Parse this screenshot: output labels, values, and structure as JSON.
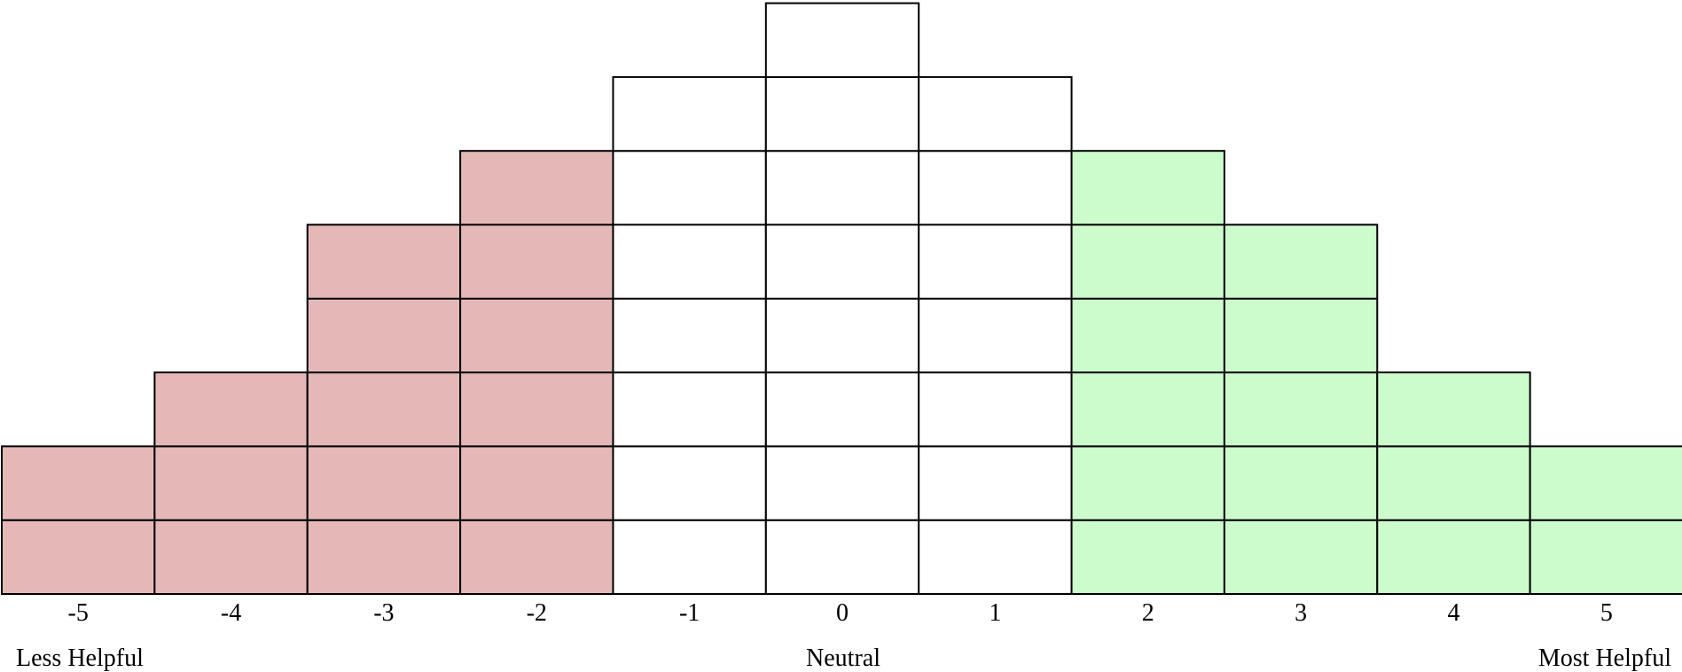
{
  "grid": {
    "columns": [
      {
        "label": "-5",
        "cells": 2,
        "group": "negative"
      },
      {
        "label": "-4",
        "cells": 3,
        "group": "negative"
      },
      {
        "label": "-3",
        "cells": 5,
        "group": "negative"
      },
      {
        "label": "-2",
        "cells": 6,
        "group": "negative"
      },
      {
        "label": "-1",
        "cells": 7,
        "group": "neutral"
      },
      {
        "label": "0",
        "cells": 8,
        "group": "neutral"
      },
      {
        "label": "1",
        "cells": 7,
        "group": "neutral"
      },
      {
        "label": "2",
        "cells": 6,
        "group": "positive"
      },
      {
        "label": "3",
        "cells": 5,
        "group": "positive"
      },
      {
        "label": "4",
        "cells": 3,
        "group": "positive"
      },
      {
        "label": "5",
        "cells": 2,
        "group": "positive"
      }
    ],
    "colors": {
      "negative": "#e5b8b8",
      "neutral": "#ffffff",
      "positive": "#ccfccc",
      "border": "#000000"
    }
  },
  "anchors": {
    "left": "Less Helpful",
    "center": "Neutral",
    "right": "Most Helpful"
  }
}
